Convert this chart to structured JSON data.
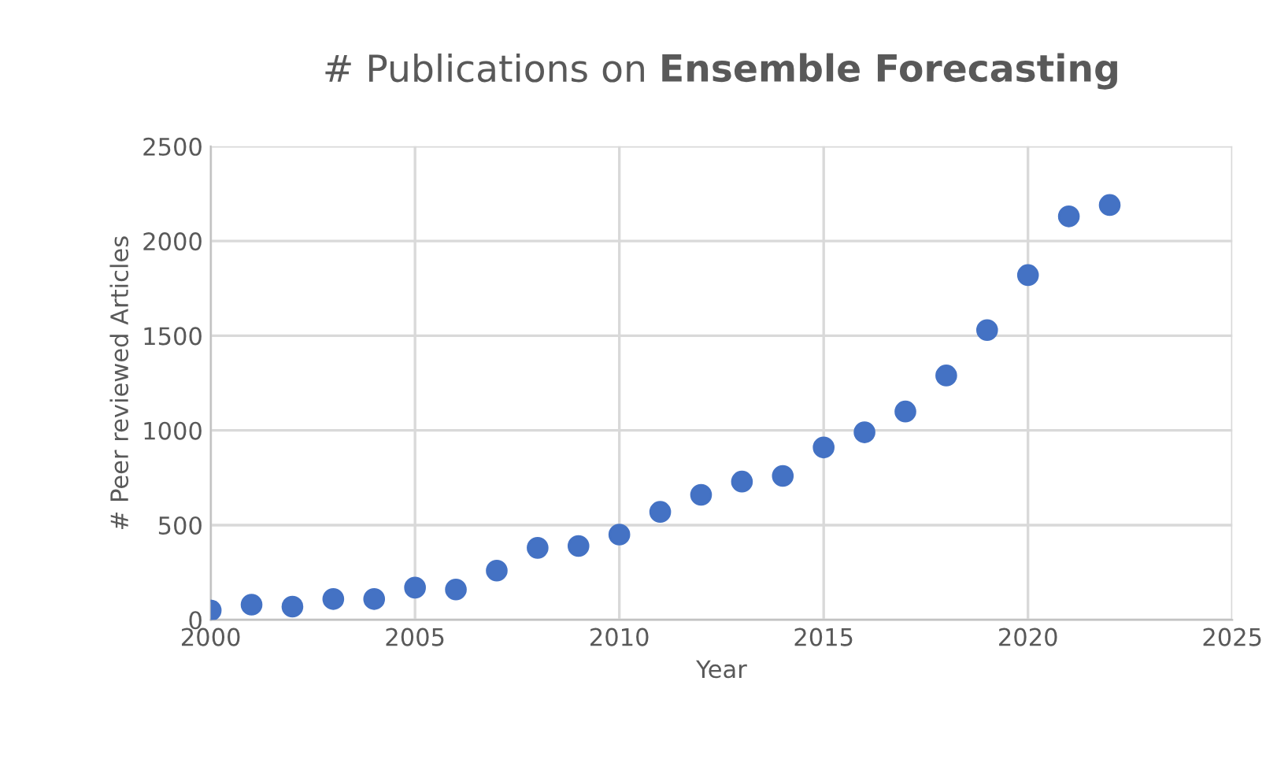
{
  "chart_data": {
    "type": "scatter",
    "title": "# Publications on Ensemble Forecasting",
    "xlabel": "Year",
    "ylabel": "# Peer reviewed Articles",
    "x": [
      2000,
      2001,
      2002,
      2003,
      2004,
      2005,
      2006,
      2007,
      2008,
      2009,
      2010,
      2011,
      2012,
      2013,
      2014,
      2015,
      2016,
      2017,
      2018,
      2019,
      2020,
      2021,
      2022
    ],
    "series": [
      {
        "color": "#4472c4",
        "values": [
          50,
          80,
          70,
          110,
          110,
          170,
          160,
          260,
          380,
          390,
          450,
          570,
          660,
          730,
          760,
          910,
          990,
          1100,
          1290,
          1530,
          1820,
          2130,
          2190
        ]
      }
    ],
    "xlim": [
      2000,
      2025
    ],
    "xticks": [
      2000,
      2005,
      2010,
      2015,
      2020,
      2025
    ],
    "ylim": [
      0,
      2500
    ],
    "yticks": [
      0,
      500,
      1000,
      1500,
      2000,
      2500
    ],
    "grid": true,
    "marker": "circle",
    "legend": false
  }
}
